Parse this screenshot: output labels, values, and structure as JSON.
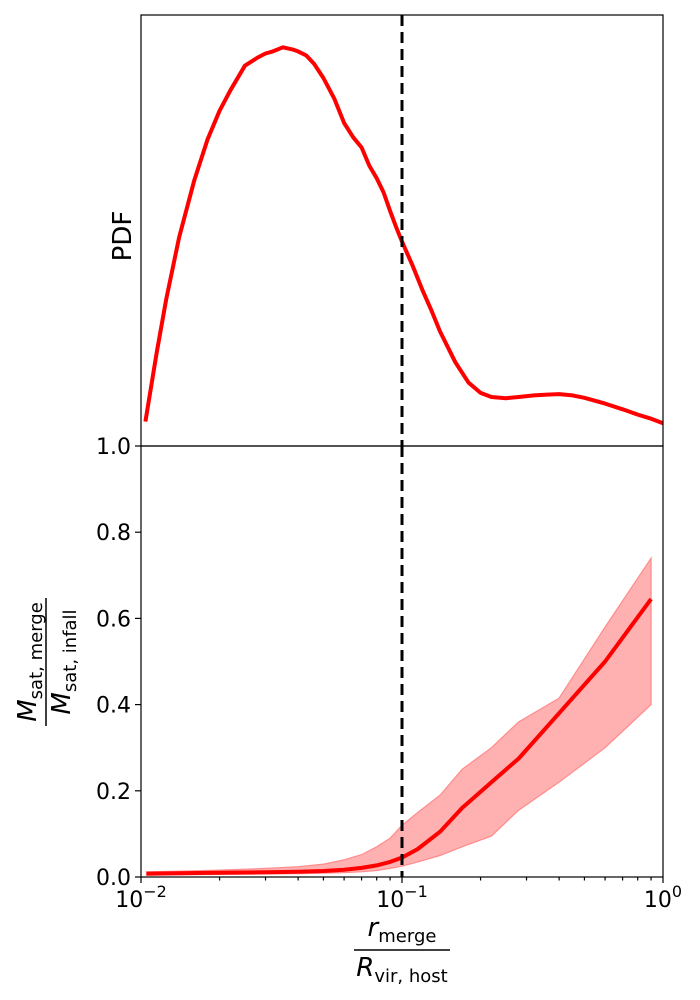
{
  "chart_data": [
    {
      "type": "line",
      "panel": "top",
      "ylabel": "PDF",
      "xscale": "log",
      "xlim": [
        0.01,
        1
      ],
      "yticks_shown": false,
      "x": [
        0.0104,
        0.0115,
        0.0125,
        0.014,
        0.016,
        0.018,
        0.02,
        0.022,
        0.025,
        0.028,
        0.03,
        0.032,
        0.035,
        0.038,
        0.04,
        0.043,
        0.046,
        0.05,
        0.055,
        0.06,
        0.065,
        0.07,
        0.075,
        0.08,
        0.085,
        0.09,
        0.095,
        0.1,
        0.11,
        0.12,
        0.13,
        0.14,
        0.16,
        0.18,
        0.2,
        0.22,
        0.25,
        0.28,
        0.32,
        0.36,
        0.4,
        0.45,
        0.5,
        0.6,
        0.7,
        0.8,
        0.9,
        1.0
      ],
      "y": [
        0.05,
        0.22,
        0.35,
        0.5,
        0.64,
        0.74,
        0.81,
        0.86,
        0.92,
        0.94,
        0.95,
        0.955,
        0.965,
        0.96,
        0.955,
        0.945,
        0.925,
        0.89,
        0.84,
        0.78,
        0.745,
        0.72,
        0.675,
        0.645,
        0.61,
        0.565,
        0.525,
        0.49,
        0.43,
        0.37,
        0.32,
        0.27,
        0.195,
        0.145,
        0.12,
        0.11,
        0.107,
        0.11,
        0.114,
        0.116,
        0.117,
        0.114,
        0.108,
        0.094,
        0.08,
        0.067,
        0.057,
        0.046
      ],
      "vline": {
        "x": 0.1,
        "style": "dashed",
        "color": "#000000"
      },
      "line_color": "#ff0000"
    },
    {
      "type": "line",
      "panel": "bottom",
      "xlabel_num": "r",
      "xlabel_num_sub": "merge",
      "xlabel_den": "R",
      "xlabel_den_sub": "vir, host",
      "ylabel_num": "M",
      "ylabel_num_sub": "sat, merge",
      "ylabel_den": "M",
      "ylabel_den_sub": "sat, infall",
      "xscale": "log",
      "xlim": [
        0.01,
        1
      ],
      "ylim": [
        0.0,
        1.0
      ],
      "xticks": [
        0.01,
        0.1,
        1
      ],
      "xtick_labels": [
        {
          "base": "10",
          "exp": "−2"
        },
        {
          "base": "10",
          "exp": "−1"
        },
        {
          "base": "10",
          "exp": "0"
        }
      ],
      "yticks": [
        0.0,
        0.2,
        0.4,
        0.6,
        0.8,
        1.0
      ],
      "ytick_labels": [
        "0.0",
        "0.2",
        "0.4",
        "0.6",
        "0.8",
        "1.0"
      ],
      "x": [
        0.0105,
        0.015,
        0.02,
        0.03,
        0.04,
        0.05,
        0.06,
        0.07,
        0.08,
        0.09,
        0.1,
        0.115,
        0.14,
        0.17,
        0.22,
        0.28,
        0.4,
        0.6,
        0.9
      ],
      "median": [
        0.008,
        0.009,
        0.01,
        0.011,
        0.012,
        0.014,
        0.017,
        0.021,
        0.027,
        0.035,
        0.045,
        0.065,
        0.105,
        0.16,
        0.22,
        0.275,
        0.38,
        0.5,
        0.645
      ],
      "upper": [
        0.012,
        0.014,
        0.016,
        0.02,
        0.024,
        0.03,
        0.04,
        0.052,
        0.07,
        0.09,
        0.12,
        0.15,
        0.19,
        0.25,
        0.3,
        0.36,
        0.415,
        0.58,
        0.74
      ],
      "lower": [
        0.004,
        0.005,
        0.006,
        0.007,
        0.008,
        0.009,
        0.01,
        0.012,
        0.015,
        0.02,
        0.025,
        0.035,
        0.05,
        0.07,
        0.095,
        0.155,
        0.22,
        0.3,
        0.4
      ],
      "vline": {
        "x": 0.1,
        "style": "dashed",
        "color": "#000000"
      },
      "line_color": "#ff0000",
      "band_color": "#ff7b7b"
    }
  ]
}
